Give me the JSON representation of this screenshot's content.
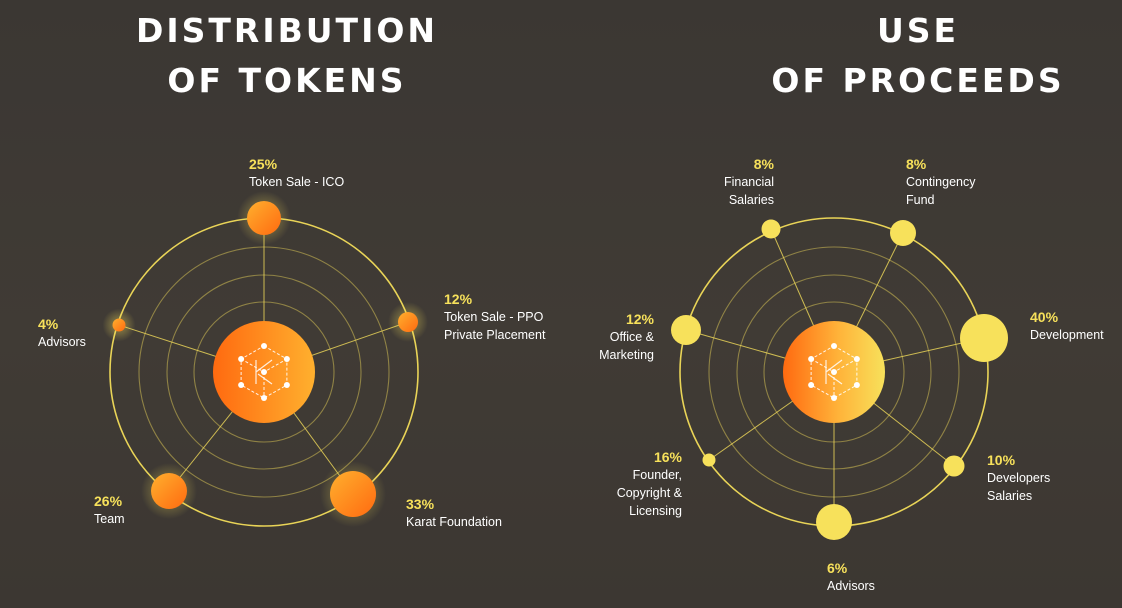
{
  "colors": {
    "accent_yellow": "#f7e15b",
    "accent_orange": "#ff7a1a",
    "ring": "#f2dc5a",
    "title": "#ffffff"
  },
  "center_icon": "karat-cube-logo-icon",
  "chart_data": [
    {
      "type": "radial-bubble",
      "title_line1": "DISTRIBUTION",
      "title_line2": "OF TOKENS",
      "segments": [
        {
          "label": "Token Sale - ICO",
          "value": 25,
          "value_label": "25%"
        },
        {
          "label": "Token Sale - PPO\nPrivate Placement",
          "value": 12,
          "value_label": "12%"
        },
        {
          "label": "Karat Foundation",
          "value": 33,
          "value_label": "33%"
        },
        {
          "label": "Team",
          "value": 26,
          "value_label": "26%"
        },
        {
          "label": "Advisors",
          "value": 4,
          "value_label": "4%"
        }
      ]
    },
    {
      "type": "radial-bubble",
      "title_line1": "USE",
      "title_line2": "OF PROCEEDS",
      "segments": [
        {
          "label": "Contingency\nFund",
          "value": 8,
          "value_label": "8%"
        },
        {
          "label": "Development",
          "value": 40,
          "value_label": "40%"
        },
        {
          "label": "Developers\nSalaries",
          "value": 10,
          "value_label": "10%"
        },
        {
          "label": "Advisors",
          "value": 6,
          "value_label": "6%"
        },
        {
          "label": "Founder,\nCopyright &\nLicensing",
          "value": 16,
          "value_label": "16%"
        },
        {
          "label": "Office &\nMarketing",
          "value": 12,
          "value_label": "12%"
        },
        {
          "label": "Financial\nSalaries",
          "value": 8,
          "value_label": "8%"
        }
      ]
    }
  ]
}
